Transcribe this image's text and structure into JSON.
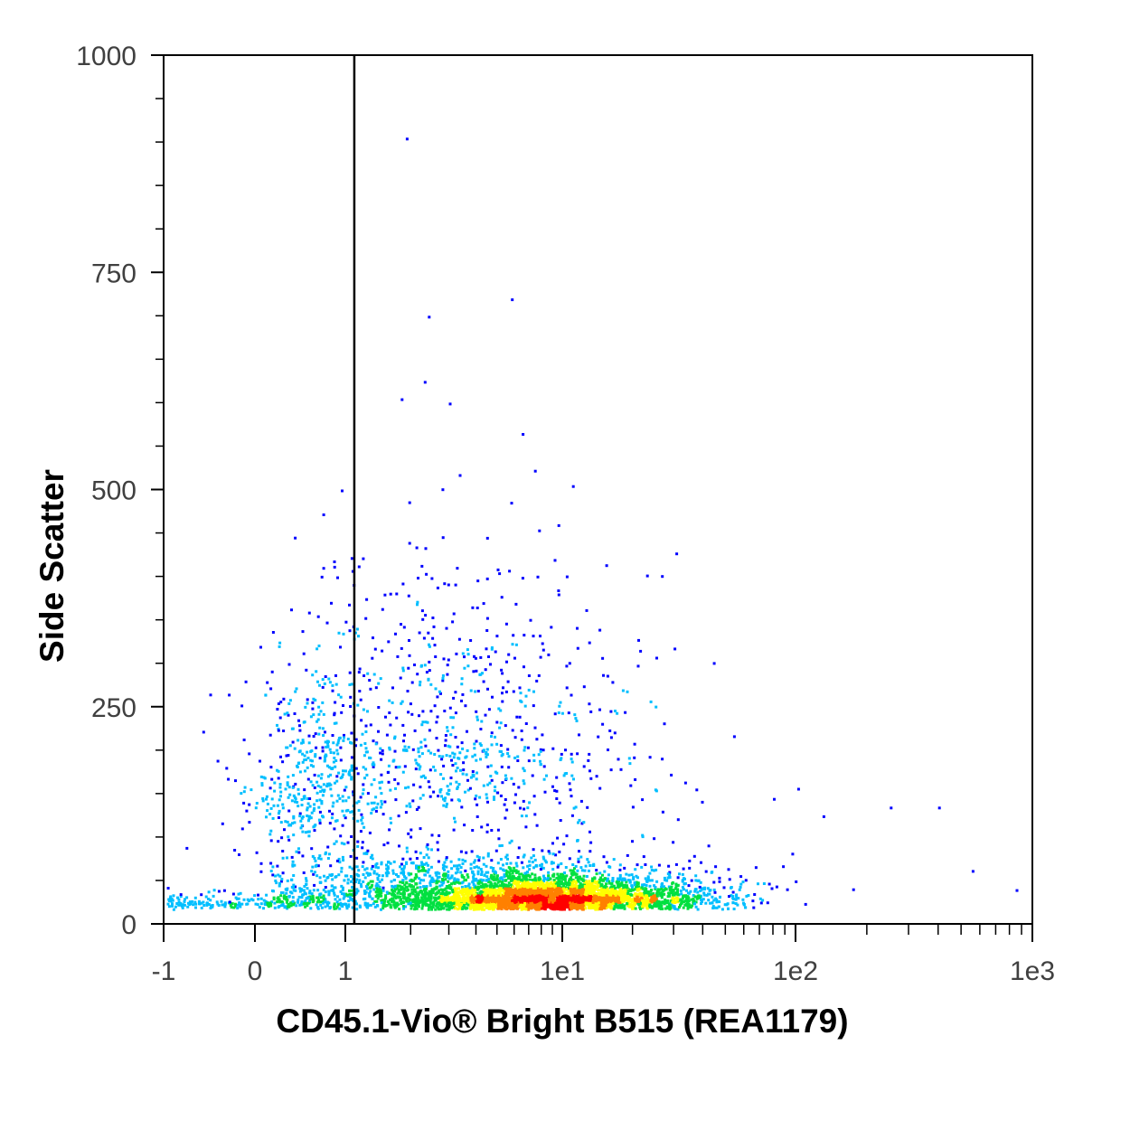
{
  "chart_data": {
    "type": "scatter",
    "xlabel": "CD45.1-Vio® Bright B515 (REA1179)",
    "ylabel": "Side Scatter",
    "x_scale": "hybrid-log",
    "y_scale": "linear",
    "xlim": [
      -1,
      1000
    ],
    "ylim": [
      0,
      1000
    ],
    "x_ticks": [
      {
        "value": -1,
        "label": "-1"
      },
      {
        "value": 0,
        "label": "0"
      },
      {
        "value": 1,
        "label": "1"
      },
      {
        "value": 10,
        "label": "1e1"
      },
      {
        "value": 100,
        "label": "1e2"
      },
      {
        "value": 1000,
        "label": "1e3"
      }
    ],
    "y_ticks": [
      {
        "value": 0,
        "label": "0"
      },
      {
        "value": 250,
        "label": "250"
      },
      {
        "value": 500,
        "label": "500"
      },
      {
        "value": 750,
        "label": "750"
      },
      {
        "value": 1000,
        "label": "1000"
      }
    ],
    "gate_line_x": 1.1,
    "grid": false,
    "legend": "none",
    "colormap": [
      "#0000ff",
      "#00bfff",
      "#00e040",
      "#ffff00",
      "#ff8000",
      "#ff0000"
    ],
    "clusters": [
      {
        "x_center": 9.0,
        "y_center": 30,
        "x_spread_log": 0.3,
        "y_spread": 12,
        "count": 3500,
        "peak_density": "high"
      },
      {
        "x_center": 4.0,
        "y_center": 42,
        "x_spread_log": 0.5,
        "y_spread": 22,
        "count": 1500,
        "peak_density": "medium"
      },
      {
        "x_center": 3.0,
        "y_center": 210,
        "x_spread_log": 0.4,
        "y_spread": 110,
        "count": 850,
        "peak_density": "low"
      },
      {
        "x_center": 0.6,
        "y_center": 160,
        "x_spread_log": 0.25,
        "y_spread": 70,
        "count": 350,
        "peak_density": "low"
      },
      {
        "x_center": 0.2,
        "y_center": 26,
        "x_spread_log": 0.5,
        "y_spread": 6,
        "count": 250,
        "peak_density": "low"
      }
    ],
    "outliers": [
      {
        "x": 1.9,
        "y": 905
      },
      {
        "x": 5.8,
        "y": 720
      },
      {
        "x": 2.4,
        "y": 700
      },
      {
        "x": 2.3,
        "y": 625
      },
      {
        "x": 1.8,
        "y": 605
      },
      {
        "x": 3.0,
        "y": 600
      },
      {
        "x": 6.5,
        "y": 565
      },
      {
        "x": 11,
        "y": 505
      },
      {
        "x": 9.5,
        "y": 460
      },
      {
        "x": 30,
        "y": 318
      },
      {
        "x": 80,
        "y": 145
      },
      {
        "x": 130,
        "y": 125
      },
      {
        "x": 250,
        "y": 135
      },
      {
        "x": 400,
        "y": 135
      },
      {
        "x": 850,
        "y": 40
      },
      {
        "x": 1.15,
        "y": 295
      },
      {
        "x": 0.95,
        "y": 500
      },
      {
        "x": 0.9,
        "y": 400
      },
      {
        "x": -0.5,
        "y": 265
      },
      {
        "x": 0.05,
        "y": 320
      },
      {
        "x": 18,
        "y": 270
      }
    ]
  }
}
